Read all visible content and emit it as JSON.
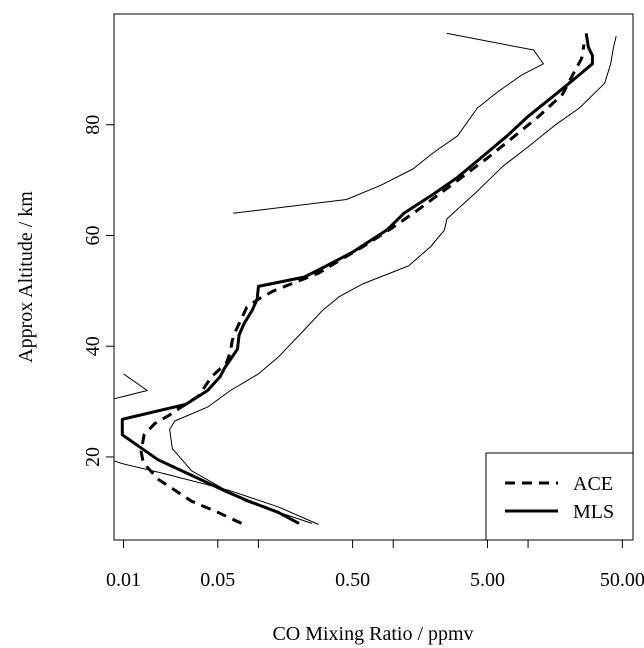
{
  "chart_data": {
    "type": "line",
    "xlabel": "CO Mixing Ratio / ppmv",
    "ylabel": "Approx Altitude / km",
    "x_scale": "log",
    "xlim": [
      0.0085,
      60
    ],
    "ylim": [
      5,
      100
    ],
    "x_ticks": [
      0.01,
      0.05,
      0.5,
      5.0,
      50.0
    ],
    "x_tick_labels": [
      "0.01",
      "0.05",
      "0.50",
      "5.00",
      "50.00"
    ],
    "x_minor_ticks": [
      0.1,
      1.0,
      10.0
    ],
    "y_ticks": [
      20,
      40,
      60,
      80
    ],
    "y_tick_labels": [
      "20",
      "40",
      "60",
      "80"
    ],
    "grid": false,
    "legend_position": "bottom-right",
    "series": [
      {
        "name": "ACE",
        "style": "dashed",
        "color": "#000000",
        "legend": true,
        "points": [
          [
            0.075,
            8
          ],
          [
            0.05,
            10
          ],
          [
            0.032,
            12
          ],
          [
            0.018,
            16
          ],
          [
            0.014,
            19
          ],
          [
            0.0135,
            21
          ],
          [
            0.0142,
            24
          ],
          [
            0.017,
            26
          ],
          [
            0.022,
            27.6
          ],
          [
            0.028,
            29.3
          ],
          [
            0.036,
            31
          ],
          [
            0.045,
            34.5
          ],
          [
            0.058,
            37
          ],
          [
            0.062,
            39
          ],
          [
            0.064,
            41
          ],
          [
            0.068,
            42.8
          ],
          [
            0.075,
            45
          ],
          [
            0.082,
            47
          ],
          [
            0.1,
            48.5
          ],
          [
            0.13,
            50
          ],
          [
            0.28,
            53.2
          ],
          [
            0.4,
            55.5
          ],
          [
            0.6,
            58
          ],
          [
            1.0,
            61.5
          ],
          [
            1.5,
            64.5
          ],
          [
            2.5,
            68.5
          ],
          [
            5.0,
            74
          ],
          [
            8.0,
            78
          ],
          [
            12.0,
            81.5
          ],
          [
            18.0,
            85.5
          ],
          [
            22.0,
            89.5
          ],
          [
            25.0,
            92
          ],
          [
            26.0,
            94.5
          ]
        ]
      },
      {
        "name": "MLS",
        "style": "solid",
        "color": "#000000",
        "legend": true,
        "points": [
          [
            0.2,
            8
          ],
          [
            0.14,
            10
          ],
          [
            0.085,
            12
          ],
          [
            0.055,
            14
          ],
          [
            0.03,
            17
          ],
          [
            0.018,
            19.5
          ],
          [
            0.0098,
            24
          ],
          [
            0.0098,
            26.8
          ],
          [
            0.029,
            29.5
          ],
          [
            0.042,
            32
          ],
          [
            0.052,
            34.5
          ],
          [
            0.056,
            36
          ],
          [
            0.07,
            39.5
          ],
          [
            0.072,
            42
          ],
          [
            0.078,
            44
          ],
          [
            0.09,
            46.5
          ],
          [
            0.098,
            48.5
          ],
          [
            0.1,
            50.8
          ],
          [
            0.22,
            52.5
          ],
          [
            0.32,
            54.5
          ],
          [
            0.5,
            57
          ],
          [
            0.9,
            61
          ],
          [
            1.2,
            64
          ],
          [
            2.0,
            67.5
          ],
          [
            3.0,
            70.5
          ],
          [
            5.0,
            75
          ],
          [
            7.0,
            78
          ],
          [
            10.0,
            81.5
          ],
          [
            16.0,
            85.5
          ],
          [
            24.0,
            89
          ],
          [
            30.0,
            91
          ],
          [
            30.0,
            92.5
          ],
          [
            28.0,
            94
          ],
          [
            27.0,
            96.5
          ]
        ]
      },
      {
        "name": "",
        "style": "thin-solid",
        "color": "#000000",
        "legend": false,
        "points": [
          [
            0.0085,
            19.3
          ],
          [
            0.0098,
            18.8
          ],
          [
            0.02,
            17
          ],
          [
            0.06,
            14
          ],
          [
            0.14,
            11
          ],
          [
            0.28,
            7.8
          ]
        ]
      },
      {
        "name": "",
        "style": "thin-solid",
        "color": "#000000",
        "legend": false,
        "points": [
          [
            0.0085,
            30.5
          ],
          [
            0.015,
            32
          ],
          [
            0.01,
            35
          ]
        ]
      },
      {
        "name": "",
        "style": "thin-solid",
        "color": "#000000",
        "legend": false,
        "points": [
          [
            0.25,
            8
          ],
          [
            0.08,
            12
          ],
          [
            0.032,
            17.5
          ],
          [
            0.023,
            21.5
          ],
          [
            0.022,
            25
          ],
          [
            0.024,
            26.5
          ],
          [
            0.042,
            29
          ],
          [
            0.062,
            32
          ],
          [
            0.1,
            35
          ],
          [
            0.14,
            38
          ],
          [
            0.22,
            43
          ],
          [
            0.3,
            46.5
          ],
          [
            0.4,
            49
          ],
          [
            0.6,
            51.3
          ],
          [
            1.3,
            54.5
          ],
          [
            1.9,
            58
          ],
          [
            2.4,
            61
          ],
          [
            2.5,
            63
          ],
          [
            4.2,
            68
          ],
          [
            6.5,
            72.5
          ],
          [
            10.0,
            76
          ],
          [
            16.0,
            80
          ],
          [
            24.0,
            83
          ],
          [
            37.0,
            87.5
          ],
          [
            41.0,
            91
          ],
          [
            43.0,
            94
          ],
          [
            45.0,
            96
          ]
        ]
      },
      {
        "name": "",
        "style": "thin-solid",
        "color": "#000000",
        "legend": false,
        "points": [
          [
            0.065,
            64
          ],
          [
            0.45,
            66.5
          ],
          [
            0.8,
            69
          ],
          [
            1.4,
            72
          ],
          [
            2.0,
            75
          ],
          [
            3.0,
            78
          ],
          [
            4.2,
            83
          ],
          [
            6.0,
            86
          ],
          [
            9.0,
            89
          ],
          [
            13.0,
            91
          ],
          [
            11.0,
            93.5
          ],
          [
            2.5,
            96.5
          ]
        ]
      }
    ]
  }
}
